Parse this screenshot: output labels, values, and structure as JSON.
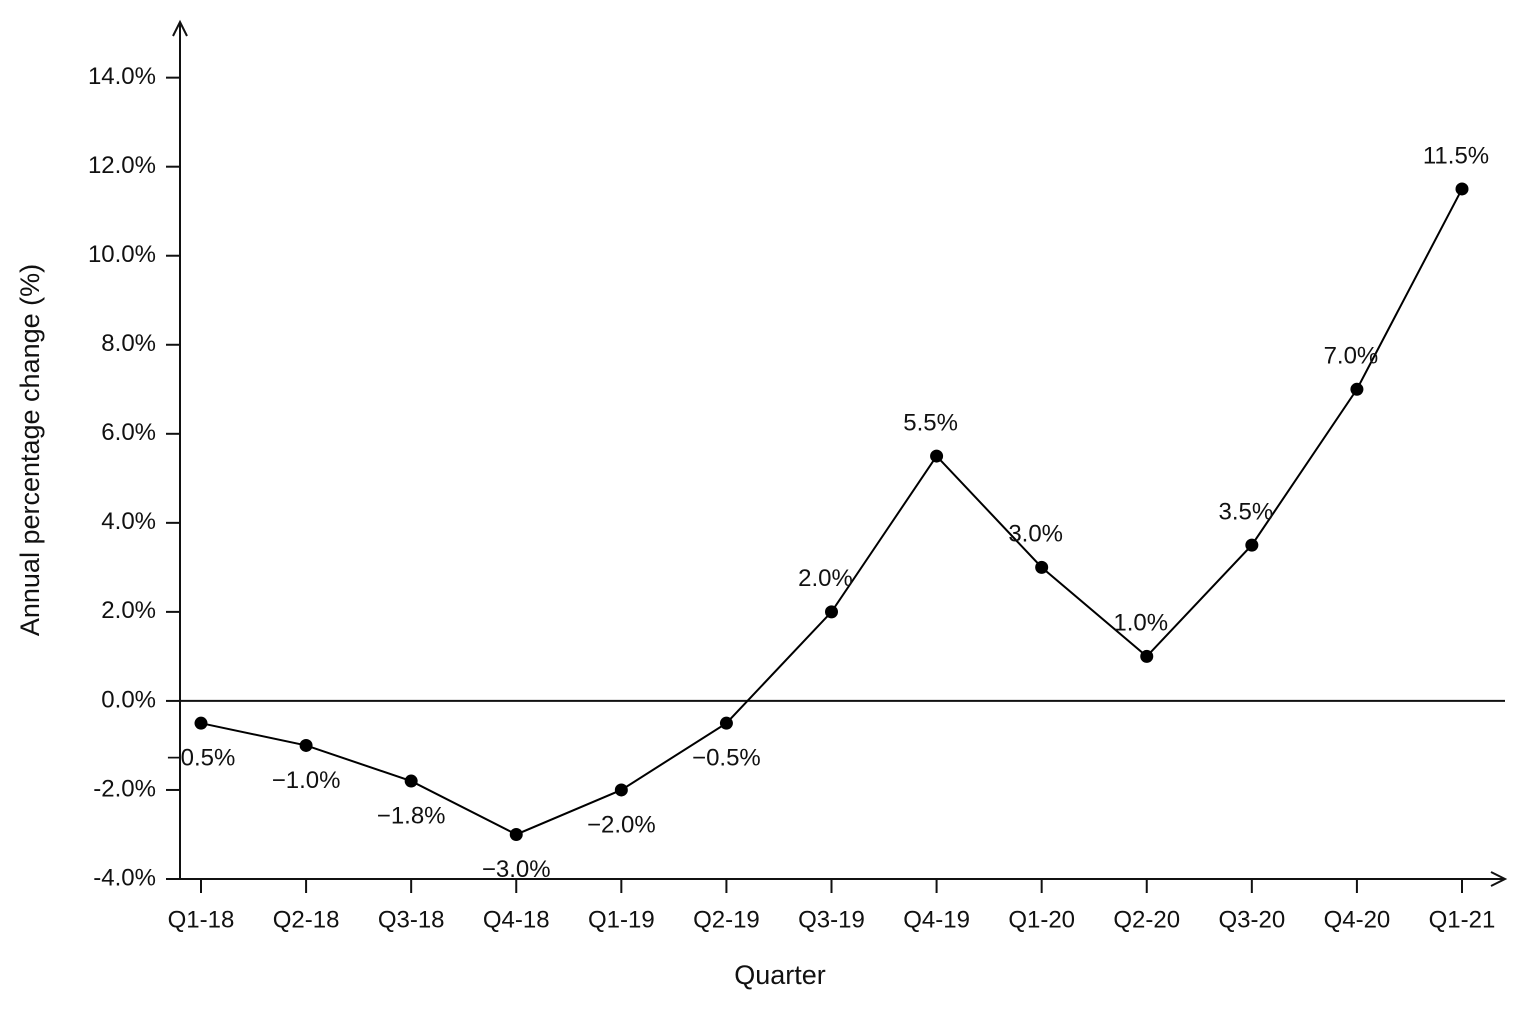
{
  "chart_data": {
    "type": "line",
    "x_label": "Quarter",
    "y_label": "Annual percentage change (%)",
    "categories": [
      "Q1-18",
      "Q2-18",
      "Q3-18",
      "Q4-18",
      "Q1-19",
      "Q2-19",
      "Q3-19",
      "Q4-19",
      "Q1-20",
      "Q2-20",
      "Q3-20",
      "Q4-20",
      "Q1-21"
    ],
    "values": [
      -0.5,
      -1.0,
      -1.8,
      -3.0,
      -2.0,
      -0.5,
      2.0,
      5.5,
      3.0,
      1.0,
      3.5,
      7.0,
      11.5
    ],
    "value_labels": [
      "−0.5%",
      "−1.0%",
      "−1.8%",
      "−3.0%",
      "−2.0%",
      "−0.5%",
      "2.0%",
      "5.5%",
      "3.0%",
      "1.0%",
      "3.5%",
      "7.0%",
      "11.5%"
    ],
    "color": "#000000",
    "ylim": [
      -4,
      15.25
    ],
    "yticks": [
      {
        "value": -4,
        "label": "-4.0%"
      },
      {
        "value": -2,
        "label": "-2.0%"
      },
      {
        "value": 0,
        "label": "0.0%"
      },
      {
        "value": 2,
        "label": "2.0%"
      },
      {
        "value": 4,
        "label": "4.0%"
      },
      {
        "value": 6,
        "label": "6.0%"
      },
      {
        "value": 8,
        "label": "8.0%"
      },
      {
        "value": 10,
        "label": "10.0%"
      },
      {
        "value": 12,
        "label": "12.0%"
      },
      {
        "value": 14,
        "label": "14.0%"
      }
    ],
    "grid": false
  }
}
